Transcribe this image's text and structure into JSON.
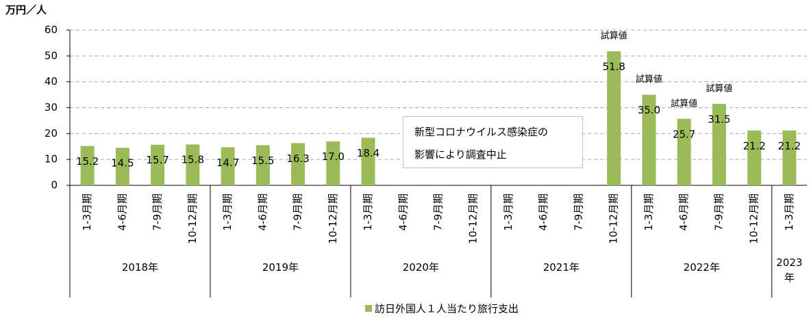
{
  "chart_data": {
    "type": "bar",
    "y_label": "万円／人",
    "groups": [
      {
        "label": "2018年",
        "categories": [
          "1-3月期",
          "4-6月期",
          "7-9月期",
          "10-12月期"
        ]
      },
      {
        "label": "2019年",
        "categories": [
          "1-3月期",
          "4-6月期",
          "7-9月期",
          "10-12月期"
        ]
      },
      {
        "label": "2020年",
        "categories": [
          "1-3月期",
          "4-6月期",
          "7-9月期",
          "10-12月期"
        ]
      },
      {
        "label": "2021年",
        "categories": [
          "1-3月期",
          "4-6月期",
          "7-9月期",
          "10-12月期"
        ]
      },
      {
        "label": "2022年",
        "categories": [
          "1-3月期",
          "4-6月期",
          "7-9月期",
          "10-12月期"
        ]
      },
      {
        "label": "2023年",
        "categories": [
          "1-3月期"
        ]
      }
    ],
    "series": [
      {
        "name": "訪日外国人１人当たり旅行支出",
        "color": "#9bbb59",
        "values": [
          15.2,
          14.5,
          15.7,
          15.8,
          14.7,
          15.5,
          16.3,
          17.0,
          18.4,
          null,
          null,
          null,
          null,
          null,
          null,
          51.8,
          35.0,
          25.7,
          31.5,
          21.2,
          21.2
        ],
        "value_labels": [
          "15.2",
          "14.5",
          "15.7",
          "15.8",
          "14.7",
          "15.5",
          "16.3",
          "17.0",
          "18.4",
          null,
          null,
          null,
          null,
          null,
          null,
          "51.8",
          "35.0",
          "25.7",
          "31.5",
          "21.2",
          "21.2"
        ],
        "value_notes": [
          null,
          null,
          null,
          null,
          null,
          null,
          null,
          null,
          null,
          null,
          null,
          null,
          null,
          null,
          null,
          "試算値",
          "試算値",
          "試算値",
          "試算値",
          null,
          null
        ]
      }
    ],
    "annotation": [
      "新型コロナウイルス感染症の",
      "影響により調査中止"
    ],
    "ylim": [
      0,
      60
    ],
    "yticks": [
      0,
      10,
      20,
      30,
      40,
      50,
      60
    ],
    "grid": true
  }
}
